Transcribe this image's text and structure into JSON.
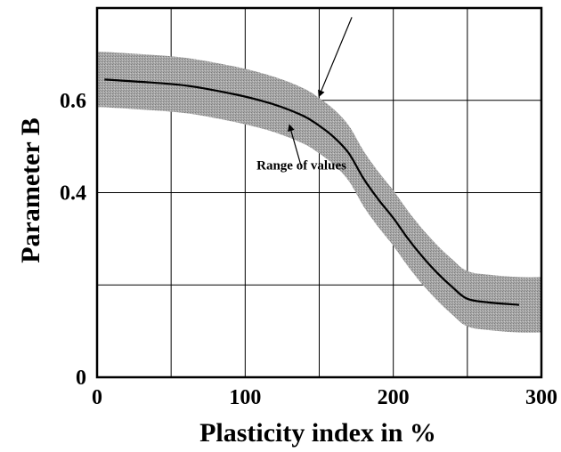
{
  "chart_data": {
    "type": "line",
    "title": "",
    "xlabel": "Plasticity index in %",
    "ylabel": "Parameter  B",
    "xlim": [
      0,
      300
    ],
    "ylim": [
      0,
      0.8
    ],
    "x_ticks": [
      0,
      100,
      200,
      300
    ],
    "x_tick_labels": [
      "0",
      "100",
      "200",
      "300"
    ],
    "y_ticks": [
      0,
      0.4,
      0.6
    ],
    "y_tick_labels": [
      "0",
      "0.4",
      "0.6"
    ],
    "grid": true,
    "x_grid": [
      0,
      50,
      100,
      150,
      200,
      250,
      300
    ],
    "y_grid": [
      0,
      0.2,
      0.4,
      0.6,
      0.8
    ],
    "series": [
      {
        "x": [
          5,
          30,
          60,
          90,
          110,
          125,
          140,
          150,
          160,
          170,
          180,
          190,
          200,
          210,
          220,
          230,
          240,
          250,
          265,
          285
        ],
        "values": [
          0.645,
          0.64,
          0.632,
          0.615,
          0.6,
          0.585,
          0.565,
          0.545,
          0.52,
          0.485,
          0.43,
          0.385,
          0.345,
          0.3,
          0.26,
          0.225,
          0.195,
          0.17,
          0.162,
          0.157
        ]
      }
    ],
    "band": {
      "label": "Range of values",
      "half_width": 0.06,
      "color": "#a6a6a6"
    },
    "annotations": [
      {
        "text": "Range of values",
        "x": 138,
        "y": 0.45
      }
    ],
    "arrows": [
      {
        "from": [
          138,
          0.455
        ],
        "to": [
          130,
          0.545
        ]
      },
      {
        "from": [
          172,
          0.78
        ],
        "to": [
          150,
          0.61
        ]
      }
    ]
  }
}
